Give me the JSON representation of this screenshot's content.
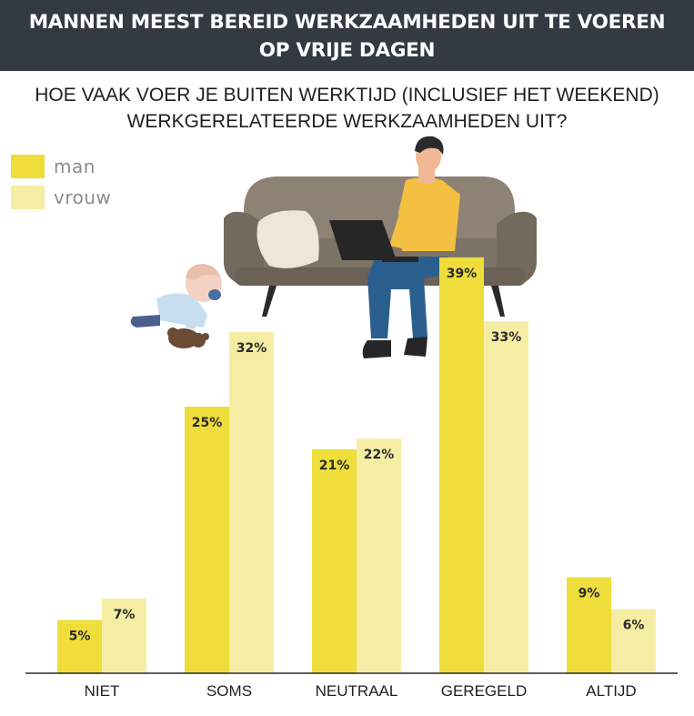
{
  "header": {
    "title_line1": "MANNEN MEEST BEREID WERKZAAMHEDEN UIT TE VOEREN",
    "title_line2": "OP VRIJE DAGEN"
  },
  "chart_data": {
    "type": "bar",
    "title": "MANNEN MEEST BEREID WERKZAAMHEDEN UIT TE VOEREN OP VRIJE DAGEN",
    "subtitle": "HOE VAAK VOER JE BUITEN WERKTIJD (INCLUSIEF HET WEEKEND) WERKGERELATEERDE WERKZAAMHEDEN UIT?",
    "subtitle_line1": "HOE VAAK VOER JE BUITEN WERKTIJD (INCLUSIEF HET WEEKEND)",
    "subtitle_line2": "WERKGERELATEERDE WERKZAAMHEDEN UIT?",
    "categories": [
      "NIET",
      "SOMS",
      "NEUTRAAL",
      "GEREGELD",
      "ALTIJD"
    ],
    "series": [
      {
        "name": "man",
        "values": [
          5,
          25,
          21,
          39,
          9
        ],
        "labels": [
          "5%",
          "25%",
          "21%",
          "39%",
          "9%"
        ],
        "color": "#eedd3a"
      },
      {
        "name": "vrouw",
        "values": [
          7,
          32,
          22,
          33,
          6
        ],
        "labels": [
          "7%",
          "32%",
          "22%",
          "33%",
          "6%"
        ],
        "color": "#f6eda4"
      }
    ],
    "unit": "%",
    "ylim": [
      0,
      40
    ],
    "grid": false,
    "legend": "top-left"
  }
}
